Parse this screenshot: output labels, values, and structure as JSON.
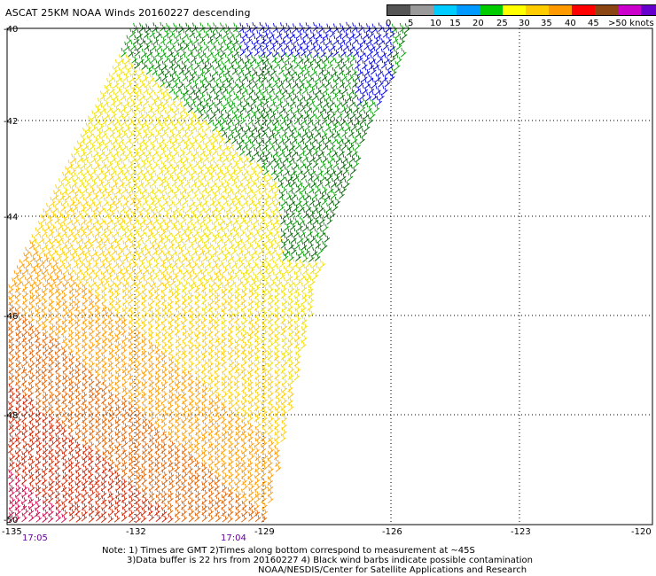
{
  "title": "ASCAT 25KM NOAA Winds 20160227 descending",
  "legend": {
    "colors": [
      "#4d4d4d",
      "#8c8c8c",
      "#00b4ff",
      "#00e0ff",
      "#0000ff",
      "#009900",
      "#00cc00",
      "#ffff00",
      "#ffcc00",
      "#ff9900",
      "#ff3300",
      "#cc0000",
      "#cc3333",
      "#8b4513",
      "#cc6699",
      "#ff00ff",
      "#9900ff",
      "#330066"
    ],
    "labels": [
      "0",
      "5",
      "10",
      "15",
      "20",
      "25",
      "30",
      "35",
      "40",
      "45",
      ">50 knots"
    ],
    "unit": "knots"
  },
  "axes": {
    "lat_labels": [
      "-40",
      "-42",
      "-44",
      "-46",
      "-48",
      "-50"
    ],
    "lon_labels": [
      "-135",
      "-132",
      "-129",
      "-126",
      "-123",
      "-120"
    ]
  },
  "time_labels": [
    "17:05",
    "17:04"
  ],
  "notes": [
    "Note: 1) Times are GMT 2)Times along bottom correspond to measurement at ~45S",
    "3)Data buffer is 22 hrs from 20160227 4) Black wind barbs indicate possible contamination",
    "NOAA/NESDIS/Center for Satellite Applications and Research"
  ],
  "wind_colors": {
    "blue": "#0000dd",
    "green": "#00a000",
    "dark_green": "#006400",
    "yellow": "#f0e000",
    "gold": "#ffcc00",
    "orange": "#ff9900",
    "dark_orange": "#e06000",
    "red": "#cc2200",
    "crimson": "#cc0044"
  }
}
